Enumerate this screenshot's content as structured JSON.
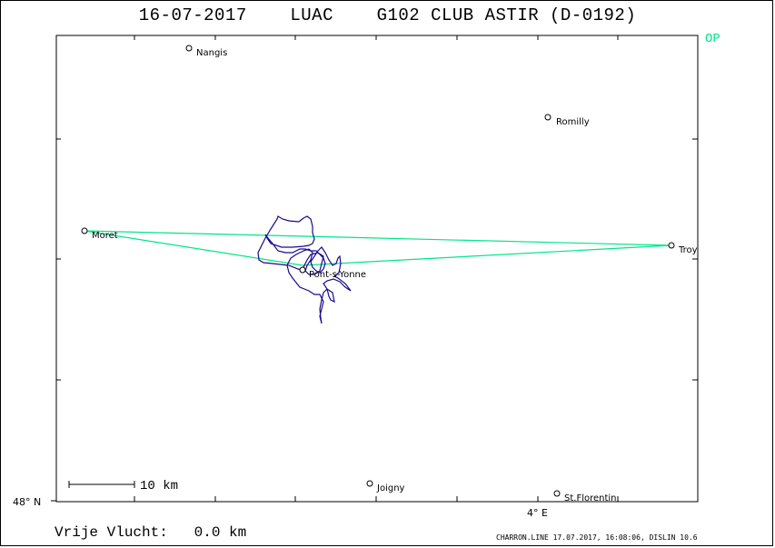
{
  "title": {
    "date": "16-07-2017",
    "site": "LUAC",
    "aircraft": "G102 CLUB ASTIR (D-0192)"
  },
  "task_type": "OP",
  "map": {
    "lat_label": "48° N",
    "lon_label": "4° E",
    "scale_label": "10 km",
    "colors": {
      "task": "#00e68a",
      "track": "#1a0a8c",
      "frame": "#000000"
    },
    "places": [
      {
        "id": "nangis",
        "name": "Nangis"
      },
      {
        "id": "romilly",
        "name": "Romilly"
      },
      {
        "id": "moret",
        "name": "Moret"
      },
      {
        "id": "troyes",
        "name": "Troy"
      },
      {
        "id": "pont",
        "name": "Pont-s-Yonne"
      },
      {
        "id": "joigny",
        "name": "Joigny"
      },
      {
        "id": "stflorentin",
        "name": "St.Florentin"
      }
    ]
  },
  "result": {
    "label": "Vrije Vlucht:",
    "distance": "0.0 km"
  },
  "footer": "CHARRON.LINE 17.07.2017, 16:08:06, DISLIN 10.6"
}
